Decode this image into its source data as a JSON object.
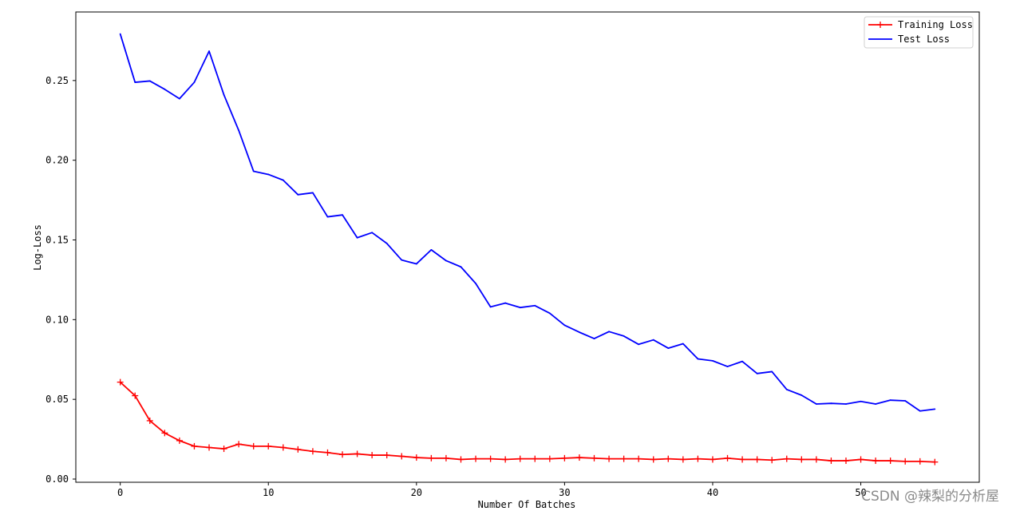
{
  "chart_data": {
    "type": "line",
    "xlabel": "Number Of Batches",
    "ylabel": "Log-Loss",
    "xlim": [
      -3,
      58
    ],
    "ylim": [
      -0.002,
      0.293
    ],
    "xticks": [
      0,
      10,
      20,
      30,
      40,
      50
    ],
    "yticks": [
      0.0,
      0.05,
      0.1,
      0.15,
      0.2,
      0.25
    ],
    "ytick_labels": [
      "0.00",
      "0.05",
      "0.10",
      "0.15",
      "0.20",
      "0.25"
    ],
    "grid": false,
    "legend_position": "top-right",
    "x": [
      0,
      1,
      2,
      3,
      4,
      5,
      6,
      7,
      8,
      9,
      10,
      11,
      12,
      13,
      14,
      15,
      16,
      17,
      18,
      19,
      20,
      21,
      22,
      23,
      24,
      25,
      26,
      27,
      28,
      29,
      30,
      31,
      32,
      33,
      34,
      35,
      36,
      37,
      38,
      39,
      40,
      41,
      42,
      43,
      44,
      45,
      46,
      47,
      48,
      49,
      50,
      51,
      52,
      53,
      54,
      55
    ],
    "series": [
      {
        "name": "Training Loss",
        "color": "#ff0000",
        "marker": "+",
        "values": [
          0.0608,
          0.0523,
          0.0366,
          0.0289,
          0.0241,
          0.0206,
          0.0198,
          0.019,
          0.0219,
          0.0206,
          0.0206,
          0.0198,
          0.0186,
          0.0174,
          0.0166,
          0.0154,
          0.0158,
          0.015,
          0.015,
          0.0143,
          0.0135,
          0.0131,
          0.0131,
          0.0123,
          0.0127,
          0.0127,
          0.0123,
          0.0127,
          0.0127,
          0.0127,
          0.0131,
          0.0135,
          0.0131,
          0.0127,
          0.0127,
          0.0127,
          0.0123,
          0.0127,
          0.0123,
          0.0127,
          0.0123,
          0.0131,
          0.0123,
          0.0123,
          0.0119,
          0.0127,
          0.0123,
          0.0123,
          0.0115,
          0.0115,
          0.0123,
          0.0115,
          0.0115,
          0.0111,
          0.0111,
          0.0107
        ]
      },
      {
        "name": "Test Loss",
        "color": "#0000ff",
        "marker": "",
        "values": [
          0.2792,
          0.2489,
          0.2497,
          0.2445,
          0.2386,
          0.2489,
          0.2684,
          0.241,
          0.2187,
          0.1931,
          0.1911,
          0.1875,
          0.1784,
          0.1796,
          0.1645,
          0.1657,
          0.1514,
          0.1546,
          0.1478,
          0.1374,
          0.135,
          0.1438,
          0.137,
          0.1331,
          0.1227,
          0.108,
          0.1104,
          0.1076,
          0.1088,
          0.104,
          0.0965,
          0.0921,
          0.0881,
          0.0925,
          0.0897,
          0.0845,
          0.0873,
          0.0821,
          0.0849,
          0.0754,
          0.0742,
          0.0706,
          0.0738,
          0.0662,
          0.0674,
          0.0562,
          0.0526,
          0.0471,
          0.0475,
          0.0471,
          0.0487,
          0.0471,
          0.0495,
          0.0491,
          0.0427,
          0.0439
        ]
      }
    ]
  },
  "watermark": "CSDN @辣梨的分析屋"
}
